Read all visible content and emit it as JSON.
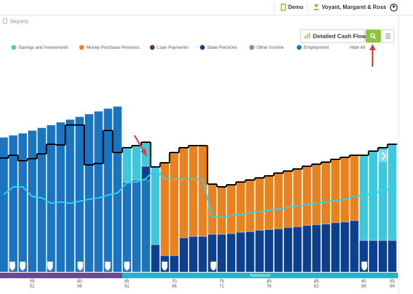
{
  "header": {
    "demo": "Demo",
    "client": "Voyant, Margaret & Ross"
  },
  "breadcrumb": "Reports",
  "toolbar": {
    "button": "Detailed Cash Flow"
  },
  "chart_data": {
    "type": "bar",
    "stacked": true,
    "hide_all": "Hide All",
    "phase_label": "Retirement",
    "x": [
      52,
      53,
      54,
      55,
      56,
      57,
      58,
      59,
      60,
      61,
      62,
      63,
      64,
      65,
      66,
      67,
      68,
      69,
      70,
      71,
      72,
      73,
      74,
      75,
      76,
      77,
      78,
      79,
      80,
      81,
      82,
      83,
      84,
      85,
      86,
      87,
      88,
      89,
      90,
      91,
      92,
      93
    ],
    "xlim": [
      51.6,
      93.6
    ],
    "xticks": [
      55,
      60,
      65,
      70,
      75,
      80,
      85,
      90,
      93
    ],
    "xticks_second_row": [
      51,
      56,
      61,
      66,
      71,
      76,
      81,
      86,
      89
    ],
    "ylim": [
      0,
      300
    ],
    "series": [
      {
        "name": "Savings and Investments",
        "color": "#3ec8dc",
        "values": [
          0,
          0,
          0,
          0,
          0,
          0,
          0,
          0,
          0,
          0,
          0,
          0,
          0,
          50,
          50,
          35,
          113,
          0,
          0,
          0,
          0,
          0,
          0,
          0,
          0,
          0,
          0,
          0,
          0,
          0,
          0,
          0,
          0,
          0,
          0,
          0,
          0,
          0,
          124,
          130,
          135,
          140
        ]
      },
      {
        "name": "Money Purchase Pensions",
        "color": "#e8821e",
        "values": [
          0,
          0,
          0,
          0,
          0,
          0,
          0,
          0,
          0,
          0,
          0,
          0,
          0,
          0,
          0,
          0,
          0,
          135,
          150,
          131,
          132,
          132,
          73,
          69,
          71,
          73,
          75,
          76,
          78,
          81,
          82,
          84,
          86,
          88,
          90,
          92,
          94,
          95,
          0,
          0,
          0,
          0
        ]
      },
      {
        "name": "Loan Payments",
        "color": "#7a1f4e",
        "values": [
          0,
          0,
          0,
          0,
          0,
          0,
          0,
          0,
          0,
          0,
          0,
          0,
          0,
          0,
          0,
          0,
          0,
          0,
          0,
          0,
          0,
          0,
          0,
          0,
          0,
          0,
          0,
          0,
          0,
          0,
          0,
          0,
          0,
          0,
          0,
          0,
          0,
          0,
          0,
          0,
          0,
          0
        ]
      },
      {
        "name": "State Pensions",
        "color": "#0c3f8e",
        "values": [
          0,
          0,
          0,
          0,
          0,
          0,
          0,
          0,
          0,
          0,
          0,
          0,
          0,
          0,
          0,
          20,
          40,
          24,
          24,
          50,
          52,
          52,
          55,
          55,
          56,
          58,
          59,
          61,
          62,
          63,
          65,
          66,
          68,
          69,
          70,
          72,
          73,
          75,
          46,
          46,
          46,
          46
        ]
      },
      {
        "name": "Other Income",
        "color": "#c764c2",
        "values": [
          0,
          0,
          0,
          0,
          0,
          0,
          0,
          0,
          0,
          0,
          0,
          0,
          0,
          0,
          0,
          0,
          0,
          0,
          0,
          0,
          0,
          0,
          0,
          0,
          0,
          0,
          0,
          0,
          0,
          0,
          0,
          0,
          0,
          0,
          0,
          0,
          0,
          0,
          0,
          0,
          0,
          0
        ]
      },
      {
        "name": "Employment",
        "color": "#1b74c0",
        "values": [
          196,
          199,
          202,
          206,
          210,
          214,
          218,
          222,
          226,
          230,
          234,
          238,
          241,
          131,
          134,
          134,
          0,
          0,
          0,
          0,
          0,
          0,
          0,
          0,
          0,
          0,
          0,
          0,
          0,
          0,
          0,
          0,
          0,
          0,
          0,
          0,
          0,
          0,
          0,
          0,
          0,
          0
        ]
      }
    ],
    "lines": [
      {
        "color": "#000000",
        "step": true,
        "values": [
          166,
          170,
          162,
          165,
          172,
          186,
          185,
          214,
          214,
          156,
          158,
          206,
          174,
          181,
          184,
          189,
          153,
          159,
          174,
          181,
          184,
          184,
          128,
          124,
          127,
          131,
          134,
          137,
          140,
          144,
          147,
          150,
          154,
          157,
          160,
          164,
          167,
          170,
          170,
          176,
          181,
          186
        ]
      },
      {
        "color": "#2fd3ea",
        "step": false,
        "values": [
          113,
          124,
          124,
          110,
          108,
          100,
          102,
          100,
          103,
          106,
          108,
          112,
          115,
          130,
          131,
          136,
          150,
          135,
          135,
          135,
          135,
          135,
          80,
          80,
          82,
          84,
          86,
          88,
          90,
          92,
          94,
          96,
          98,
          100,
          102,
          104,
          106,
          110,
          112,
          115,
          118,
          122
        ]
      }
    ]
  }
}
